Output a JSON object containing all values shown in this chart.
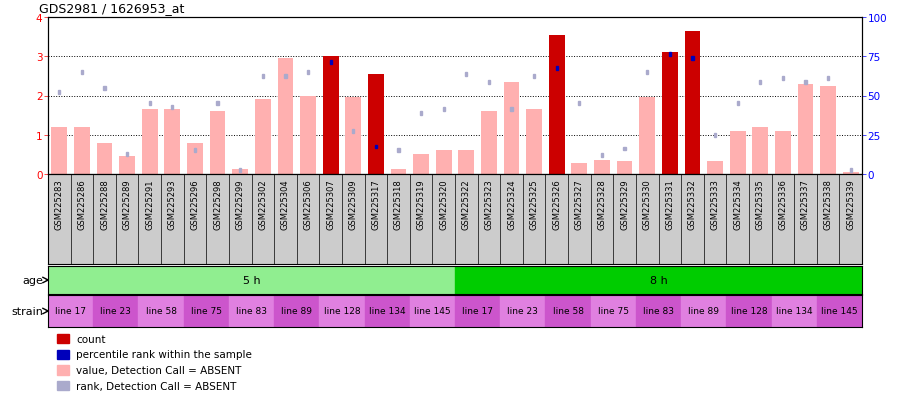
{
  "title": "GDS2981 / 1626953_at",
  "samples": [
    "GSM225283",
    "GSM225286",
    "GSM225288",
    "GSM225289",
    "GSM225291",
    "GSM225293",
    "GSM225296",
    "GSM225298",
    "GSM225299",
    "GSM225302",
    "GSM225304",
    "GSM225306",
    "GSM225307",
    "GSM225309",
    "GSM225317",
    "GSM225318",
    "GSM225319",
    "GSM225320",
    "GSM225322",
    "GSM225323",
    "GSM225324",
    "GSM225325",
    "GSM225326",
    "GSM225327",
    "GSM225328",
    "GSM225329",
    "GSM225330",
    "GSM225331",
    "GSM225332",
    "GSM225333",
    "GSM225334",
    "GSM225335",
    "GSM225336",
    "GSM225337",
    "GSM225338",
    "GSM225339"
  ],
  "bar_values": [
    1.2,
    1.2,
    0.8,
    0.45,
    1.65,
    1.65,
    0.8,
    1.6,
    0.12,
    1.9,
    2.95,
    2.0,
    3.0,
    1.95,
    2.55,
    0.12,
    0.5,
    0.6,
    0.6,
    1.6,
    2.35,
    1.65,
    3.55,
    0.28,
    0.35,
    0.32,
    1.95,
    3.1,
    3.65,
    0.32,
    1.1,
    1.2,
    1.1,
    2.3,
    2.25,
    0.05
  ],
  "bar_absent": [
    true,
    true,
    true,
    true,
    true,
    true,
    true,
    true,
    true,
    true,
    true,
    true,
    false,
    true,
    false,
    true,
    true,
    true,
    true,
    true,
    true,
    true,
    false,
    true,
    true,
    true,
    true,
    false,
    false,
    true,
    true,
    true,
    true,
    true,
    true,
    true
  ],
  "rank_values": [
    2.1,
    2.6,
    2.2,
    0.5,
    1.8,
    1.7,
    0.6,
    1.8,
    0.1,
    2.5,
    2.5,
    2.6,
    2.85,
    1.1,
    0.7,
    0.6,
    1.55,
    1.65,
    2.55,
    2.35,
    1.65,
    2.5,
    2.7,
    1.8,
    0.48,
    0.65,
    2.6,
    3.05,
    2.95,
    1.0,
    1.8,
    2.35,
    2.45,
    2.35,
    2.45,
    0.1
  ],
  "rank_absent": [
    true,
    true,
    true,
    true,
    true,
    true,
    true,
    true,
    true,
    true,
    true,
    true,
    false,
    true,
    false,
    true,
    true,
    true,
    true,
    true,
    true,
    true,
    false,
    true,
    true,
    true,
    true,
    false,
    false,
    true,
    true,
    true,
    true,
    true,
    true,
    true
  ],
  "ylim": [
    0,
    4
  ],
  "yticks_left": [
    0,
    1,
    2,
    3,
    4
  ],
  "yticks_right": [
    0,
    25,
    50,
    75,
    100
  ],
  "dotted_lines": [
    1,
    2,
    3
  ],
  "age_groups": [
    {
      "label": "5 h",
      "start": 0,
      "end": 18,
      "color": "#90ee90"
    },
    {
      "label": "8 h",
      "start": 18,
      "end": 36,
      "color": "#00cc00"
    }
  ],
  "strain_groups": [
    {
      "label": "line 17",
      "start": 0,
      "end": 2
    },
    {
      "label": "line 23",
      "start": 2,
      "end": 4
    },
    {
      "label": "line 58",
      "start": 4,
      "end": 6
    },
    {
      "label": "line 75",
      "start": 6,
      "end": 8
    },
    {
      "label": "line 83",
      "start": 8,
      "end": 10
    },
    {
      "label": "line 89",
      "start": 10,
      "end": 12
    },
    {
      "label": "line 128",
      "start": 12,
      "end": 14
    },
    {
      "label": "line 134",
      "start": 14,
      "end": 16
    },
    {
      "label": "line 145",
      "start": 16,
      "end": 18
    },
    {
      "label": "line 17",
      "start": 18,
      "end": 20
    },
    {
      "label": "line 23",
      "start": 20,
      "end": 22
    },
    {
      "label": "line 58",
      "start": 22,
      "end": 24
    },
    {
      "label": "line 75",
      "start": 24,
      "end": 26
    },
    {
      "label": "line 83",
      "start": 26,
      "end": 28
    },
    {
      "label": "line 89",
      "start": 28,
      "end": 30
    },
    {
      "label": "line 128",
      "start": 30,
      "end": 32
    },
    {
      "label": "line 134",
      "start": 32,
      "end": 34
    },
    {
      "label": "line 145",
      "start": 34,
      "end": 36
    }
  ],
  "bar_color_present": "#cc0000",
  "bar_color_absent": "#ffb0b0",
  "rank_color_present": "#0000bb",
  "rank_color_absent": "#aaaacc",
  "chart_bg": "#ffffff",
  "label_bg": "#cccccc",
  "legend_items": [
    {
      "color": "#cc0000",
      "label": "count"
    },
    {
      "color": "#0000bb",
      "label": "percentile rank within the sample"
    },
    {
      "color": "#ffb0b0",
      "label": "value, Detection Call = ABSENT"
    },
    {
      "color": "#aaaacc",
      "label": "rank, Detection Call = ABSENT"
    }
  ]
}
